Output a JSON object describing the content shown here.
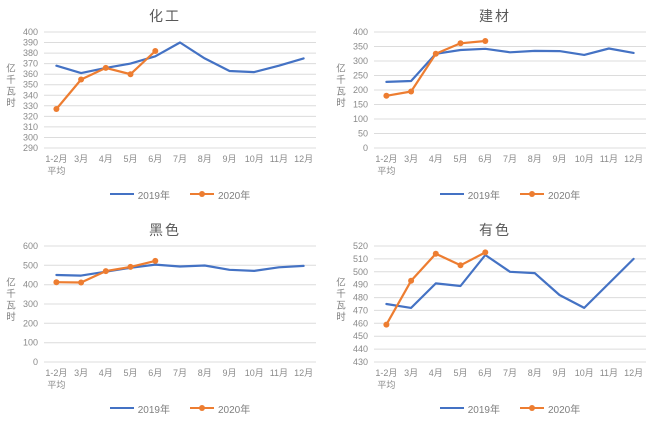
{
  "page": {
    "background": "#ffffff",
    "unit_label": "亿千瓦时"
  },
  "colors": {
    "series_2019": "#4472C4",
    "series_2020": "#ED7D31",
    "gridline": "#dcdcdc",
    "axis_text": "#8a8a8a",
    "title_text": "#595959"
  },
  "chart_data": [
    {
      "type": "line",
      "title": "化工",
      "xlabel": "",
      "ylabel": "亿千瓦时",
      "categories": [
        "1-2月\n平均",
        "3月",
        "4月",
        "5月",
        "6月",
        "7月",
        "8月",
        "9月",
        "10月",
        "11月",
        "12月"
      ],
      "ylim": [
        290,
        400
      ],
      "ystep": 10,
      "grid": true,
      "legend_position": "bottom",
      "series": [
        {
          "name": "2019年",
          "color": "#4472C4",
          "marker": "none",
          "values": [
            368,
            361,
            366,
            370,
            377,
            390,
            375,
            363,
            362,
            368,
            375
          ]
        },
        {
          "name": "2020年",
          "color": "#ED7D31",
          "marker": "circle",
          "values": [
            327,
            355,
            366,
            360,
            382
          ]
        }
      ]
    },
    {
      "type": "line",
      "title": "建材",
      "xlabel": "",
      "ylabel": "亿千瓦时",
      "categories": [
        "1-2月\n平均",
        "3月",
        "4月",
        "5月",
        "6月",
        "7月",
        "8月",
        "9月",
        "10月",
        "11月",
        "12月"
      ],
      "ylim": [
        0,
        400
      ],
      "ystep": 50,
      "grid": true,
      "legend_position": "bottom",
      "series": [
        {
          "name": "2019年",
          "color": "#4472C4",
          "marker": "none",
          "values": [
            228,
            231,
            325,
            338,
            342,
            330,
            335,
            334,
            321,
            343,
            328
          ]
        },
        {
          "name": "2020年",
          "color": "#ED7D31",
          "marker": "circle",
          "values": [
            180,
            195,
            325,
            361,
            369
          ]
        }
      ]
    },
    {
      "type": "line",
      "title": "黑色",
      "xlabel": "",
      "ylabel": "亿千瓦时",
      "categories": [
        "1-2月\n平均",
        "3月",
        "4月",
        "5月",
        "6月",
        "7月",
        "8月",
        "9月",
        "10月",
        "11月",
        "12月"
      ],
      "ylim": [
        0,
        600
      ],
      "ystep": 100,
      "grid": true,
      "legend_position": "bottom",
      "series": [
        {
          "name": "2019年",
          "color": "#4472C4",
          "marker": "none",
          "values": [
            450,
            447,
            467,
            487,
            504,
            494,
            499,
            477,
            471,
            490,
            497
          ]
        },
        {
          "name": "2020年",
          "color": "#ED7D31",
          "marker": "circle",
          "values": [
            413,
            411,
            470,
            492,
            523
          ]
        }
      ]
    },
    {
      "type": "line",
      "title": "有色",
      "xlabel": "",
      "ylabel": "亿千瓦时",
      "categories": [
        "1-2月\n平均",
        "3月",
        "4月",
        "5月",
        "6月",
        "7月",
        "8月",
        "9月",
        "10月",
        "11月",
        "12月"
      ],
      "ylim": [
        430,
        520
      ],
      "ystep": 10,
      "grid": true,
      "legend_position": "bottom",
      "series": [
        {
          "name": "2019年",
          "color": "#4472C4",
          "marker": "none",
          "values": [
            475,
            472,
            491,
            489,
            513,
            500,
            499,
            482,
            472,
            491,
            510
          ]
        },
        {
          "name": "2020年",
          "color": "#ED7D31",
          "marker": "circle",
          "values": [
            459,
            493,
            514,
            505,
            515
          ]
        }
      ]
    }
  ]
}
